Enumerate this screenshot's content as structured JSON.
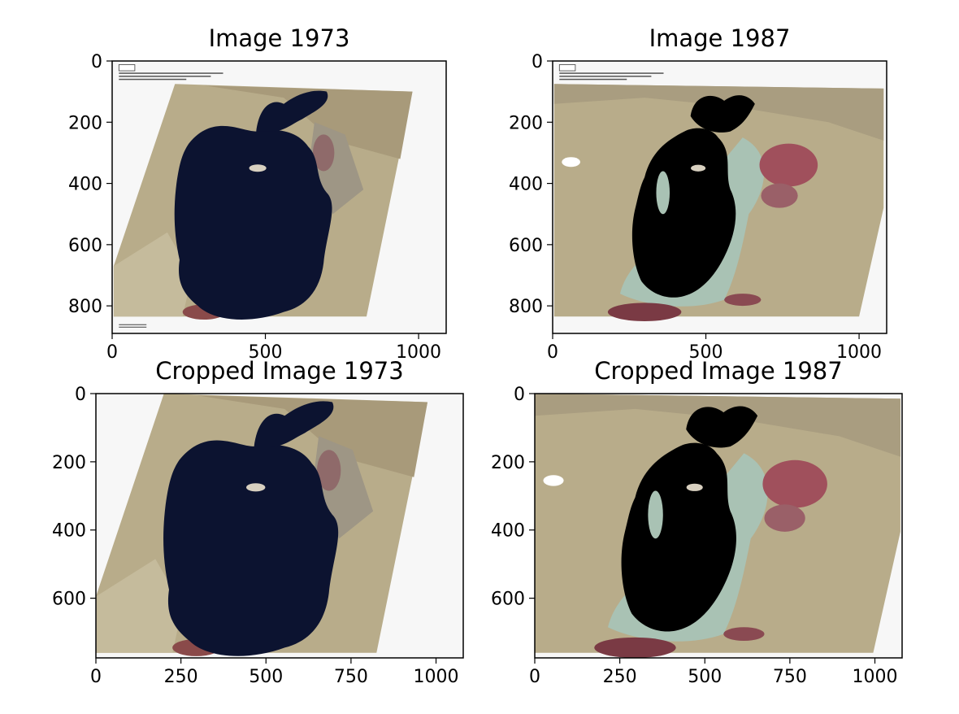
{
  "figure": {
    "panels": [
      {
        "title": "Image 1973",
        "year": "1973",
        "kind": "full",
        "xlim": [
          0,
          1090
        ],
        "ylim": [
          890,
          0
        ],
        "xticks": [
          0,
          500,
          1000
        ],
        "yticks": [
          0,
          200,
          400,
          600,
          800
        ]
      },
      {
        "title": "Image 1987",
        "year": "1987",
        "kind": "full",
        "xlim": [
          0,
          1090
        ],
        "ylim": [
          890,
          0
        ],
        "xticks": [
          0,
          500,
          1000
        ],
        "yticks": [
          0,
          200,
          400,
          600,
          800
        ]
      },
      {
        "title": "Cropped Image 1973",
        "year": "1973",
        "kind": "cropped",
        "xlim": [
          0,
          1080
        ],
        "ylim": [
          775,
          0
        ],
        "xticks": [
          0,
          250,
          500,
          750,
          1000
        ],
        "yticks": [
          0,
          200,
          400,
          600
        ]
      },
      {
        "title": "Cropped Image 1987",
        "year": "1987",
        "kind": "cropped",
        "xlim": [
          0,
          1080
        ],
        "ylim": [
          775,
          0
        ],
        "xticks": [
          0,
          250,
          500,
          750,
          1000
        ],
        "yticks": [
          0,
          200,
          400,
          600
        ]
      }
    ],
    "colors": {
      "land": "#b8ac8a",
      "land_dark": "#8f7f63",
      "water_1973": "#0c1330",
      "water_1987": "#000000",
      "vegetation": "#a0505c",
      "salt_flats": "#a9c2b4",
      "background": "#f7f7f7"
    }
  }
}
